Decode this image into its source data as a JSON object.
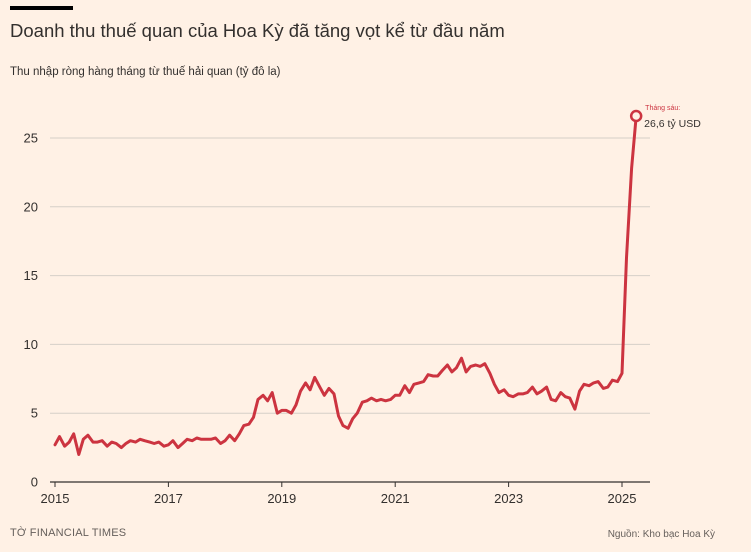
{
  "header": {
    "title": "Doanh thu thuế quan của Hoa Kỳ đã tăng vọt kể từ đầu năm",
    "subtitle": "Thu nhập ròng hàng tháng từ thuế hải quan (tỷ đô la)"
  },
  "footer": {
    "credit": "TỜ FINANCIAL TIMES",
    "source": "Nguồn: Kho bạc Hoa Kỳ"
  },
  "colors": {
    "line": "#cc3440",
    "background": "#fff1e5",
    "grid": "#d6cfc8"
  },
  "chart_data": {
    "type": "line",
    "title": "Doanh thu thuế quan của Hoa Kỳ đã tăng vọt kể từ đầu năm",
    "ylabel": "Thu nhập ròng hàng tháng từ thuế hải quan (tỷ đô la)",
    "xlim": [
      2015,
      2025.55
    ],
    "ylim": [
      0,
      26.6
    ],
    "xticks": [
      2015,
      2017,
      2019,
      2021,
      2023,
      2025
    ],
    "yticks": [
      0,
      5,
      10,
      15,
      20,
      25
    ],
    "grid": true,
    "annotation": {
      "label": "Tháng sáu:",
      "value": "26,6 tỷ USD",
      "x": 2025.25,
      "y": 26.6
    },
    "series": [
      {
        "x": [
          2015.0,
          2015.08,
          2015.17,
          2015.25,
          2015.33,
          2015.42,
          2015.5,
          2015.58,
          2015.67,
          2015.75,
          2015.83,
          2015.92,
          2016.0,
          2016.08,
          2016.17,
          2016.25,
          2016.33,
          2016.42,
          2016.5,
          2016.58,
          2016.67,
          2016.75,
          2016.83,
          2016.92,
          2017.0,
          2017.08,
          2017.17,
          2017.25,
          2017.33,
          2017.42,
          2017.5,
          2017.58,
          2017.67,
          2017.75,
          2017.83,
          2017.92,
          2018.0,
          2018.08,
          2018.17,
          2018.25,
          2018.33,
          2018.42,
          2018.5,
          2018.58,
          2018.67,
          2018.75,
          2018.83,
          2018.92,
          2019.0,
          2019.08,
          2019.17,
          2019.25,
          2019.33,
          2019.42,
          2019.5,
          2019.58,
          2019.67,
          2019.75,
          2019.83,
          2019.92,
          2020.0,
          2020.08,
          2020.17,
          2020.25,
          2020.33,
          2020.42,
          2020.5,
          2020.58,
          2020.67,
          2020.75,
          2020.83,
          2020.92,
          2021.0,
          2021.08,
          2021.17,
          2021.25,
          2021.33,
          2021.42,
          2021.5,
          2021.58,
          2021.67,
          2021.75,
          2021.83,
          2021.92,
          2022.0,
          2022.08,
          2022.17,
          2022.25,
          2022.33,
          2022.42,
          2022.5,
          2022.58,
          2022.67,
          2022.75,
          2022.83,
          2022.92,
          2023.0,
          2023.08,
          2023.17,
          2023.25,
          2023.33,
          2023.42,
          2023.5,
          2023.58,
          2023.67,
          2023.75,
          2023.83,
          2023.92,
          2024.0,
          2024.08,
          2024.17,
          2024.25,
          2024.33,
          2024.42,
          2024.5,
          2024.58,
          2024.67,
          2024.75,
          2024.83,
          2024.92,
          2025.0,
          2025.08,
          2025.17,
          2025.25
        ],
        "y": [
          2.7,
          3.3,
          2.6,
          2.9,
          3.5,
          2.0,
          3.1,
          3.4,
          2.9,
          2.9,
          3.0,
          2.6,
          2.9,
          2.8,
          2.5,
          2.8,
          3.0,
          2.9,
          3.1,
          3.0,
          2.9,
          2.8,
          2.9,
          2.6,
          2.7,
          3.0,
          2.5,
          2.8,
          3.1,
          3.0,
          3.2,
          3.1,
          3.1,
          3.1,
          3.2,
          2.8,
          3.0,
          3.4,
          3.0,
          3.5,
          4.1,
          4.2,
          4.7,
          6.0,
          6.3,
          5.9,
          6.5,
          5.0,
          5.2,
          5.2,
          5.0,
          5.6,
          6.6,
          7.2,
          6.7,
          7.6,
          6.9,
          6.3,
          6.8,
          6.4,
          4.8,
          4.1,
          3.9,
          4.6,
          5.0,
          5.8,
          5.9,
          6.1,
          5.9,
          6.0,
          5.9,
          6.0,
          6.3,
          6.3,
          7.0,
          6.5,
          7.1,
          7.2,
          7.3,
          7.8,
          7.7,
          7.7,
          8.1,
          8.5,
          8.0,
          8.3,
          9.0,
          8.0,
          8.4,
          8.5,
          8.4,
          8.6,
          7.9,
          7.1,
          6.5,
          6.7,
          6.3,
          6.2,
          6.4,
          6.4,
          6.5,
          6.9,
          6.4,
          6.6,
          6.9,
          6.0,
          5.9,
          6.5,
          6.2,
          6.1,
          5.3,
          6.6,
          7.1,
          7.0,
          7.2,
          7.3,
          6.8,
          6.9,
          7.4,
          7.3,
          7.9,
          16.3,
          22.8,
          26.6
        ]
      }
    ]
  }
}
